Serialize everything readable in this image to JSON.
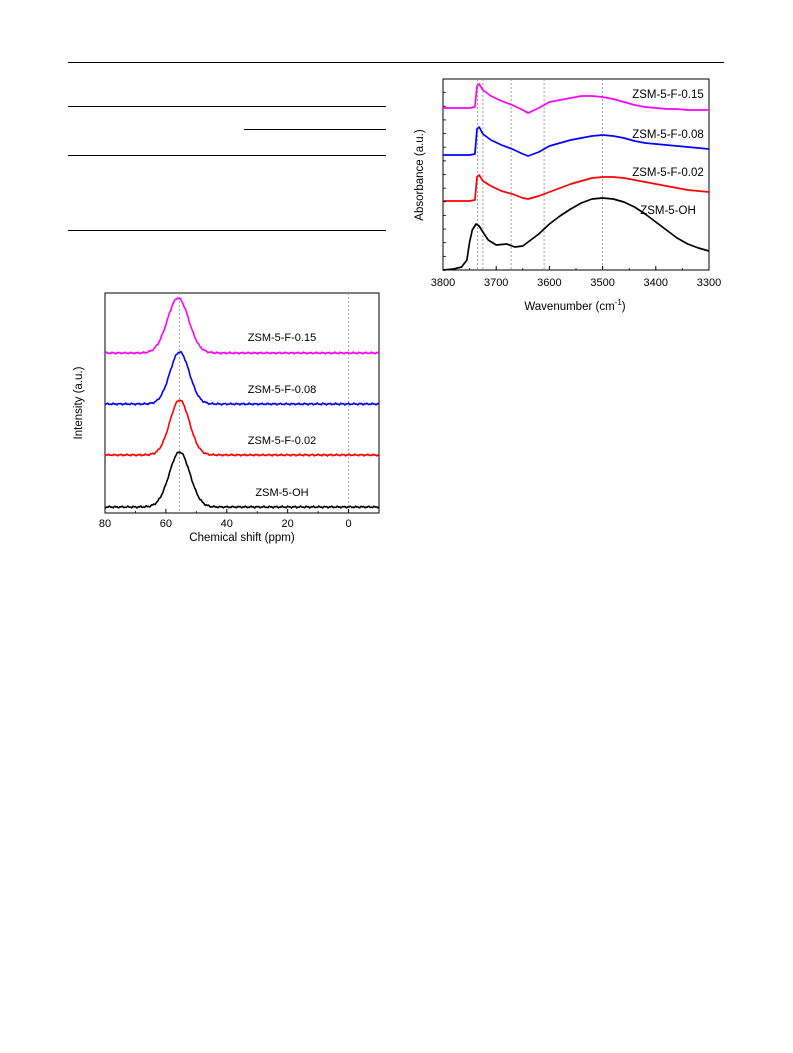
{
  "chart_data": [
    {
      "type": "line",
      "title": "",
      "xlabel": "Chemical shift (ppm)",
      "ylabel": "Intensity (a.u.)",
      "xlim": [
        80,
        -10
      ],
      "x_direction": "reversed",
      "xticks": [
        80,
        60,
        40,
        20,
        0
      ],
      "reference_lines_x": [
        55.5,
        0
      ],
      "series": [
        {
          "name": "ZSM-5-F-0.15",
          "color": "#ff00ff",
          "peak_x": 56,
          "peak_width": 3.5,
          "peak_height": 0.55,
          "baseline": 0
        },
        {
          "name": "ZSM-5-F-0.08",
          "color": "#0000ff",
          "peak_x": 55.5,
          "peak_width": 3.2,
          "peak_height": 0.52,
          "baseline": 0
        },
        {
          "name": "ZSM-5-F-0.02",
          "color": "#ff0000",
          "peak_x": 55.5,
          "peak_width": 3.2,
          "peak_height": 0.55,
          "baseline": 0
        },
        {
          "name": "ZSM-5-OH",
          "color": "#000000",
          "peak_x": 55.5,
          "peak_width": 3.4,
          "peak_height": 0.55,
          "baseline": 0
        }
      ]
    },
    {
      "type": "line",
      "title": "",
      "xlabel": "Wavenumber (cm⁻¹)",
      "ylabel": "Absorbance (a.u.)",
      "xlim": [
        3800,
        3300
      ],
      "x_direction": "reversed",
      "xticks": [
        3800,
        3700,
        3600,
        3500,
        3400,
        3300
      ],
      "reference_lines_x": [
        3735,
        3725,
        3672,
        3610,
        3500
      ],
      "series": [
        {
          "name": "ZSM-5-F-0.15",
          "color": "#ff00ff",
          "x": [
            3800,
            3750,
            3740,
            3736,
            3732,
            3725,
            3710,
            3690,
            3670,
            3650,
            3640,
            3620,
            3600,
            3580,
            3560,
            3540,
            3520,
            3500,
            3480,
            3460,
            3440,
            3420,
            3400,
            3380,
            3360,
            3340,
            3320,
            3300
          ],
          "y": [
            0.1,
            0.1,
            0.11,
            0.32,
            0.34,
            0.28,
            0.22,
            0.17,
            0.13,
            0.08,
            0.05,
            0.1,
            0.16,
            0.18,
            0.2,
            0.22,
            0.22,
            0.21,
            0.19,
            0.16,
            0.13,
            0.11,
            0.1,
            0.09,
            0.09,
            0.08,
            0.08,
            0.08
          ]
        },
        {
          "name": "ZSM-5-F-0.08",
          "color": "#0000ff",
          "x": [
            3800,
            3750,
            3740,
            3736,
            3732,
            3725,
            3710,
            3690,
            3670,
            3650,
            3640,
            3620,
            3600,
            3580,
            3560,
            3540,
            3520,
            3500,
            3480,
            3460,
            3440,
            3420,
            3400,
            3380,
            3360,
            3340,
            3320,
            3300
          ],
          "y": [
            0.05,
            0.05,
            0.06,
            0.31,
            0.33,
            0.26,
            0.2,
            0.15,
            0.11,
            0.06,
            0.04,
            0.08,
            0.14,
            0.17,
            0.2,
            0.22,
            0.24,
            0.25,
            0.24,
            0.22,
            0.19,
            0.17,
            0.16,
            0.15,
            0.14,
            0.13,
            0.12,
            0.11
          ]
        },
        {
          "name": "ZSM-5-F-0.02",
          "color": "#ff0000",
          "x": [
            3800,
            3750,
            3740,
            3736,
            3732,
            3725,
            3710,
            3690,
            3670,
            3650,
            3640,
            3620,
            3600,
            3580,
            3560,
            3540,
            3520,
            3500,
            3480,
            3460,
            3440,
            3420,
            3400,
            3380,
            3360,
            3340,
            3320,
            3300
          ],
          "y": [
            0.03,
            0.03,
            0.04,
            0.27,
            0.29,
            0.23,
            0.18,
            0.13,
            0.1,
            0.06,
            0.05,
            0.08,
            0.12,
            0.16,
            0.2,
            0.23,
            0.26,
            0.27,
            0.27,
            0.26,
            0.24,
            0.22,
            0.2,
            0.18,
            0.16,
            0.14,
            0.13,
            0.12
          ]
        },
        {
          "name": "ZSM-5-OH",
          "color": "#000000",
          "x": [
            3800,
            3780,
            3765,
            3755,
            3750,
            3745,
            3738,
            3732,
            3725,
            3715,
            3700,
            3680,
            3665,
            3650,
            3640,
            3620,
            3600,
            3580,
            3560,
            3540,
            3520,
            3500,
            3480,
            3460,
            3440,
            3420,
            3400,
            3380,
            3360,
            3340,
            3320,
            3300
          ],
          "y": [
            0.02,
            0.03,
            0.05,
            0.12,
            0.3,
            0.42,
            0.48,
            0.46,
            0.4,
            0.32,
            0.27,
            0.28,
            0.25,
            0.26,
            0.3,
            0.38,
            0.48,
            0.56,
            0.63,
            0.69,
            0.73,
            0.74,
            0.73,
            0.7,
            0.65,
            0.58,
            0.5,
            0.42,
            0.34,
            0.28,
            0.24,
            0.21
          ]
        }
      ]
    }
  ]
}
